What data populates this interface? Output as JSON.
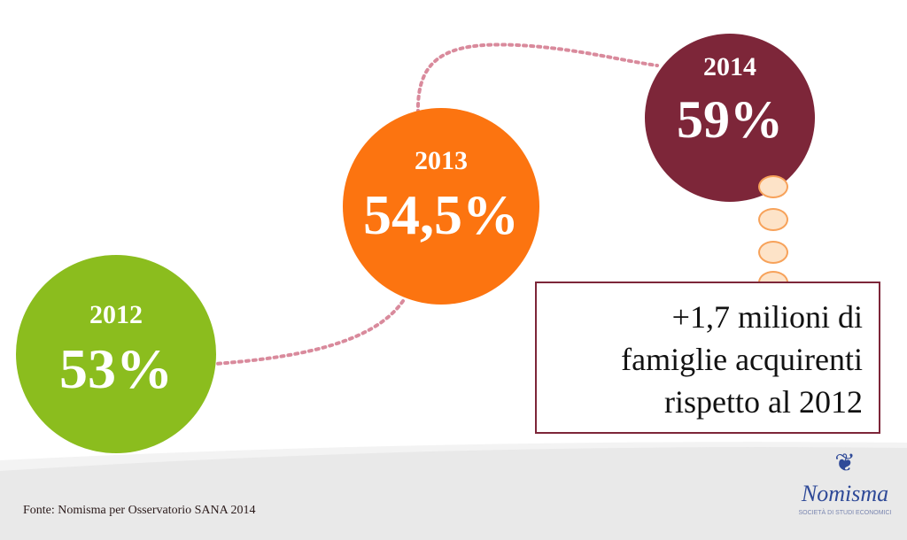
{
  "items": [
    {
      "year": "2012",
      "value": "53%"
    },
    {
      "year": "2013",
      "value": "54,5%"
    },
    {
      "year": "2014",
      "value": "59%"
    }
  ],
  "note": {
    "line1": "+1,7 milioni di",
    "line2": "famiglie acquirenti",
    "line3": "rispetto al 2012"
  },
  "footer": {
    "source": "Fonte: Nomisma per Osservatorio SANA 2014"
  },
  "logo": {
    "name": "Nomisma",
    "subtitle": "SOCIETÀ DI STUDI ECONOMICI"
  },
  "colors": {
    "green": "#8bbd1e",
    "orange": "#fc7410",
    "maroon": "#7d2639",
    "dots": "#d98a9c"
  }
}
